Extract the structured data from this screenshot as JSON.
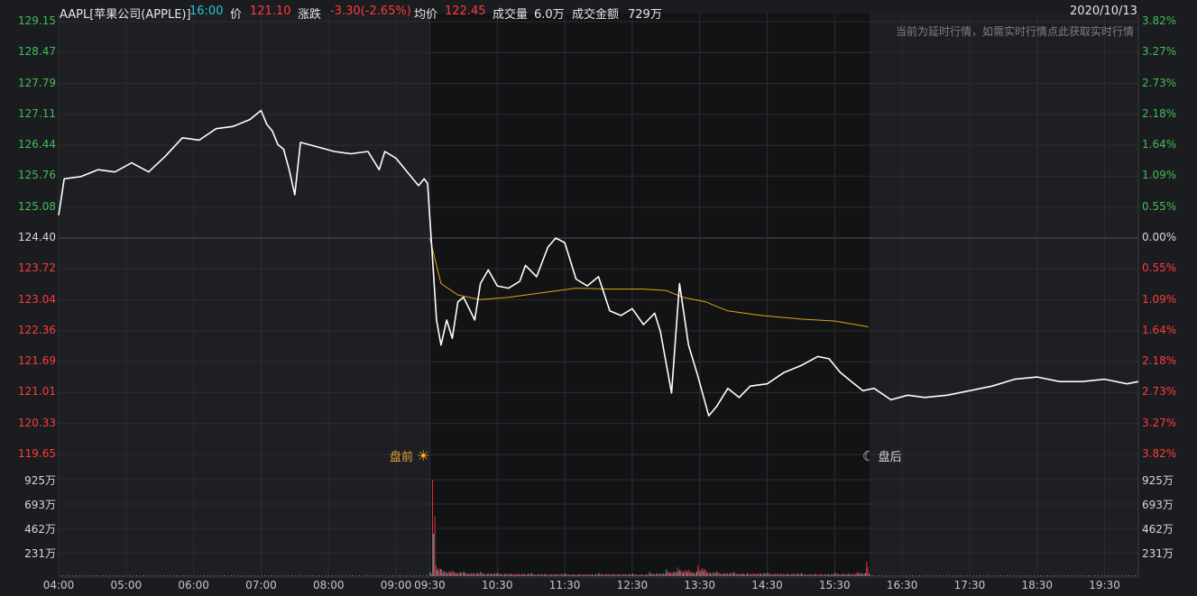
{
  "header": {
    "symbol": "AAPL[苹果公司(APPLE)]",
    "time": "16:00",
    "price_label": "价",
    "price": "121.10",
    "change_label": "涨跌",
    "change": "-3.30(-2.65%)",
    "avg_label": "均价",
    "avg": "122.45",
    "volume_label": "成交量",
    "volume": "6.0万",
    "amount_label": "成交金额",
    "amount": "729万",
    "date": "2020/10/13"
  },
  "notice": "当前为延时行情，如需实时行情点此获取实时行情",
  "markers": {
    "premarket": "盘前",
    "afterhours": "盘后"
  },
  "colors": {
    "up": "#ff3b3b",
    "down": "#3fbf5a",
    "price_line": "#ffffff",
    "avg_line": "#e0a516",
    "vol_up": "#e0303a",
    "vol_down": "#27c2cf"
  },
  "chart_data": {
    "type": "line",
    "prev_close": 124.4,
    "price_ticks": [
      "129.15",
      "128.47",
      "127.79",
      "127.11",
      "126.44",
      "125.76",
      "125.08",
      "124.40",
      "123.72",
      "123.04",
      "122.36",
      "121.69",
      "121.01",
      "120.33",
      "119.65"
    ],
    "pct_ticks": [
      "3.82%",
      "3.27%",
      "2.73%",
      "2.18%",
      "1.64%",
      "1.09%",
      "0.55%",
      "0.00%",
      "0.55%",
      "1.09%",
      "1.64%",
      "2.18%",
      "2.73%",
      "3.27%",
      "3.82%"
    ],
    "volume_ticks": [
      "925万",
      "693万",
      "462万",
      "231万"
    ],
    "time_ticks": [
      "04:00",
      "05:00",
      "06:00",
      "07:00",
      "08:00",
      "09:00",
      "09:30",
      "10:30",
      "11:30",
      "12:30",
      "13:30",
      "14:30",
      "15:30",
      "16:30",
      "17:30",
      "18:30",
      "19:30"
    ],
    "ylim": [
      119.65,
      129.15
    ],
    "sessions": [
      "04:00-09:30 premarket",
      "09:30-16:00 regular",
      "16:00-20:00 afterhours"
    ],
    "price_series": [
      [
        "04:00",
        124.9
      ],
      [
        "04:05",
        125.7
      ],
      [
        "04:20",
        125.75
      ],
      [
        "04:35",
        125.9
      ],
      [
        "04:50",
        125.85
      ],
      [
        "05:05",
        126.05
      ],
      [
        "05:20",
        125.85
      ],
      [
        "05:35",
        126.2
      ],
      [
        "05:50",
        126.6
      ],
      [
        "06:05",
        126.55
      ],
      [
        "06:20",
        126.8
      ],
      [
        "06:35",
        126.85
      ],
      [
        "06:50",
        127.0
      ],
      [
        "07:00",
        127.2
      ],
      [
        "07:05",
        126.9
      ],
      [
        "07:10",
        126.75
      ],
      [
        "07:15",
        126.45
      ],
      [
        "07:20",
        126.35
      ],
      [
        "07:25",
        125.9
      ],
      [
        "07:30",
        125.35
      ],
      [
        "07:35",
        126.5
      ],
      [
        "07:50",
        126.4
      ],
      [
        "08:05",
        126.3
      ],
      [
        "08:20",
        126.25
      ],
      [
        "08:35",
        126.3
      ],
      [
        "08:45",
        125.9
      ],
      [
        "08:50",
        126.3
      ],
      [
        "09:00",
        126.15
      ],
      [
        "09:10",
        125.85
      ],
      [
        "09:20",
        125.55
      ],
      [
        "09:25",
        125.7
      ],
      [
        "09:28",
        125.6
      ],
      [
        "09:32",
        124.1
      ],
      [
        "09:36",
        122.6
      ],
      [
        "09:40",
        122.05
      ],
      [
        "09:45",
        122.6
      ],
      [
        "09:50",
        122.2
      ],
      [
        "09:55",
        123.0
      ],
      [
        "10:00",
        123.1
      ],
      [
        "10:10",
        122.6
      ],
      [
        "10:15",
        123.4
      ],
      [
        "10:22",
        123.7
      ],
      [
        "10:30",
        123.35
      ],
      [
        "10:40",
        123.3
      ],
      [
        "10:50",
        123.45
      ],
      [
        "10:55",
        123.8
      ],
      [
        "11:05",
        123.55
      ],
      [
        "11:15",
        124.2
      ],
      [
        "11:22",
        124.4
      ],
      [
        "11:30",
        124.3
      ],
      [
        "11:40",
        123.5
      ],
      [
        "11:50",
        123.35
      ],
      [
        "12:00",
        123.55
      ],
      [
        "12:10",
        122.8
      ],
      [
        "12:20",
        122.7
      ],
      [
        "12:30",
        122.85
      ],
      [
        "12:40",
        122.5
      ],
      [
        "12:50",
        122.75
      ],
      [
        "12:55",
        122.35
      ],
      [
        "13:05",
        121.0
      ],
      [
        "13:12",
        123.4
      ],
      [
        "13:20",
        122.05
      ],
      [
        "13:28",
        121.4
      ],
      [
        "13:38",
        120.5
      ],
      [
        "13:45",
        120.7
      ],
      [
        "13:55",
        121.1
      ],
      [
        "14:05",
        120.9
      ],
      [
        "14:15",
        121.15
      ],
      [
        "14:30",
        121.2
      ],
      [
        "14:45",
        121.45
      ],
      [
        "15:00",
        121.6
      ],
      [
        "15:15",
        121.8
      ],
      [
        "15:25",
        121.75
      ],
      [
        "15:35",
        121.45
      ],
      [
        "15:45",
        121.25
      ],
      [
        "15:55",
        121.05
      ],
      [
        "16:05",
        121.1
      ],
      [
        "16:20",
        120.85
      ],
      [
        "16:35",
        120.95
      ],
      [
        "16:50",
        120.9
      ],
      [
        "17:10",
        120.95
      ],
      [
        "17:30",
        121.05
      ],
      [
        "17:50",
        121.15
      ],
      [
        "18:10",
        121.3
      ],
      [
        "18:30",
        121.35
      ],
      [
        "18:50",
        121.25
      ],
      [
        "19:10",
        121.25
      ],
      [
        "19:30",
        121.3
      ],
      [
        "19:50",
        121.2
      ],
      [
        "20:00",
        121.25
      ]
    ],
    "avg_series": [
      [
        "09:30",
        124.4
      ],
      [
        "09:40",
        123.4
      ],
      [
        "09:55",
        123.15
      ],
      [
        "10:15",
        123.05
      ],
      [
        "10:40",
        123.1
      ],
      [
        "11:10",
        123.2
      ],
      [
        "11:40",
        123.3
      ],
      [
        "12:10",
        123.28
      ],
      [
        "12:40",
        123.28
      ],
      [
        "13:00",
        123.25
      ],
      [
        "13:15",
        123.1
      ],
      [
        "13:35",
        123.0
      ],
      [
        "13:55",
        122.8
      ],
      [
        "14:25",
        122.7
      ],
      [
        "15:00",
        122.62
      ],
      [
        "15:30",
        122.58
      ],
      [
        "16:00",
        122.45
      ]
    ],
    "volume_series_wan": [
      [
        "09:30",
        40
      ],
      [
        "09:32",
        925
      ],
      [
        "09:35",
        110
      ],
      [
        "09:40",
        70
      ],
      [
        "09:50",
        55
      ],
      [
        "10:00",
        45
      ],
      [
        "10:15",
        40
      ],
      [
        "10:30",
        35
      ],
      [
        "11:00",
        30
      ],
      [
        "11:30",
        28
      ],
      [
        "12:00",
        30
      ],
      [
        "12:30",
        25
      ],
      [
        "12:45",
        40
      ],
      [
        "13:00",
        65
      ],
      [
        "13:10",
        85
      ],
      [
        "13:20",
        60
      ],
      [
        "13:28",
        110
      ],
      [
        "13:35",
        55
      ],
      [
        "13:45",
        45
      ],
      [
        "14:00",
        40
      ],
      [
        "14:30",
        35
      ],
      [
        "15:00",
        30
      ],
      [
        "15:30",
        35
      ],
      [
        "15:50",
        45
      ],
      [
        "15:58",
        140
      ],
      [
        "16:00",
        25
      ]
    ]
  }
}
